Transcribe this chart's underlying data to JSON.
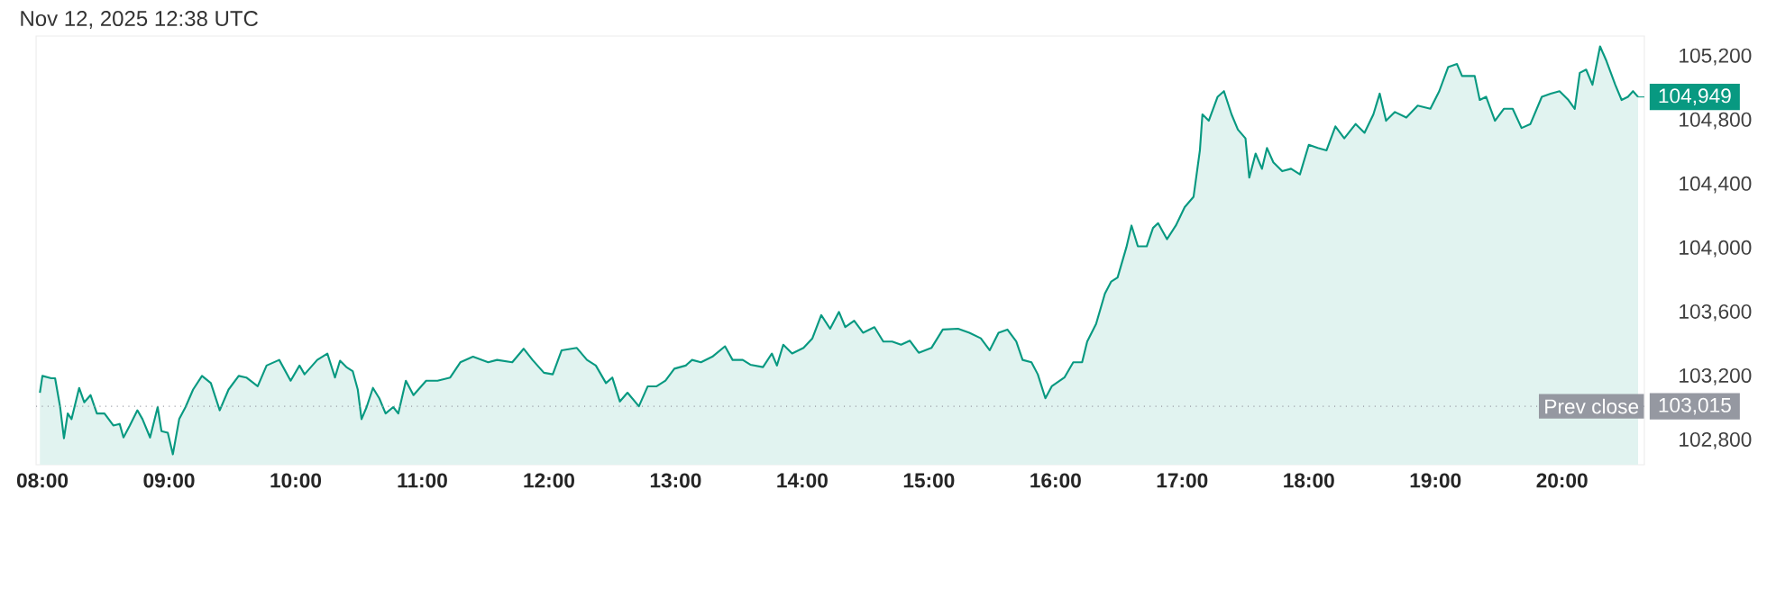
{
  "chart_data": {
    "type": "area",
    "title": "Nov 12, 2025 12:38 UTC",
    "color": "#089981",
    "marker": "none",
    "line_style": "solid",
    "x": [
      7.98,
      8.0,
      8.07,
      8.1,
      8.14,
      8.17,
      8.2,
      8.23,
      8.29,
      8.33,
      8.38,
      8.43,
      8.49,
      8.56,
      8.61,
      8.64,
      8.69,
      8.75,
      8.79,
      8.85,
      8.91,
      8.94,
      8.99,
      9.03,
      9.08,
      9.13,
      9.19,
      9.26,
      9.33,
      9.4,
      9.47,
      9.55,
      9.61,
      9.7,
      9.77,
      9.87,
      9.96,
      10.03,
      10.07,
      10.17,
      10.25,
      10.31,
      10.35,
      10.4,
      10.45,
      10.49,
      10.52,
      10.56,
      10.61,
      10.66,
      10.71,
      10.77,
      10.81,
      10.87,
      10.93,
      11.03,
      11.12,
      11.22,
      11.3,
      11.4,
      11.52,
      11.59,
      11.71,
      11.8,
      11.87,
      11.96,
      12.03,
      12.1,
      12.22,
      12.3,
      12.37,
      12.45,
      12.5,
      12.56,
      12.62,
      12.71,
      12.78,
      12.85,
      12.92,
      12.99,
      13.08,
      13.13,
      13.2,
      13.29,
      13.39,
      13.45,
      13.53,
      13.59,
      13.69,
      13.76,
      13.8,
      13.85,
      13.92,
      14.01,
      14.08,
      14.15,
      14.22,
      14.29,
      14.34,
      14.41,
      14.48,
      14.57,
      14.64,
      14.71,
      14.78,
      14.85,
      14.92,
      15.02,
      15.11,
      15.23,
      15.32,
      15.41,
      15.48,
      15.55,
      15.62,
      15.69,
      15.74,
      15.81,
      15.86,
      15.92,
      15.97,
      16.07,
      16.14,
      16.21,
      16.25,
      16.32,
      16.39,
      16.44,
      16.49,
      16.56,
      16.6,
      16.65,
      16.72,
      16.77,
      16.81,
      16.88,
      16.95,
      17.02,
      17.09,
      17.14,
      17.16,
      17.21,
      17.28,
      17.33,
      17.39,
      17.44,
      17.5,
      17.53,
      17.58,
      17.63,
      17.67,
      17.72,
      17.79,
      17.86,
      17.93,
      18.0,
      18.07,
      18.14,
      18.21,
      18.28,
      18.37,
      18.44,
      18.51,
      18.56,
      18.61,
      18.68,
      18.77,
      18.86,
      18.96,
      19.03,
      19.1,
      19.17,
      19.21,
      19.31,
      19.35,
      19.4,
      19.47,
      19.54,
      19.61,
      19.68,
      19.75,
      19.84,
      19.91,
      19.98,
      20.05,
      20.1,
      20.14,
      20.19,
      20.24,
      20.3,
      20.35,
      20.42,
      20.47,
      20.52,
      20.56,
      20.6
    ],
    "values": [
      103100,
      103205,
      103190,
      103190,
      103010,
      102815,
      102970,
      102935,
      103130,
      103040,
      103085,
      102970,
      102970,
      102895,
      102905,
      102820,
      102895,
      102990,
      102935,
      102820,
      103010,
      102860,
      102850,
      102715,
      102935,
      103010,
      103120,
      103205,
      103160,
      102990,
      103120,
      103205,
      103195,
      103140,
      103270,
      103305,
      103175,
      103270,
      103215,
      103305,
      103345,
      103195,
      103300,
      103260,
      103235,
      103120,
      102935,
      103010,
      103130,
      103065,
      102970,
      103010,
      102970,
      103175,
      103085,
      103175,
      103175,
      103195,
      103290,
      103325,
      103290,
      103305,
      103290,
      103375,
      103305,
      103225,
      103215,
      103365,
      103380,
      103305,
      103270,
      103160,
      103195,
      103045,
      103100,
      103015,
      103140,
      103140,
      103175,
      103250,
      103270,
      103305,
      103290,
      103325,
      103390,
      103305,
      103305,
      103275,
      103260,
      103345,
      103270,
      103400,
      103345,
      103380,
      103440,
      103585,
      103500,
      103605,
      103510,
      103550,
      103475,
      103510,
      103420,
      103420,
      103400,
      103425,
      103350,
      103380,
      103495,
      103500,
      103475,
      103440,
      103365,
      103475,
      103495,
      103420,
      103305,
      103290,
      103215,
      103065,
      103140,
      103195,
      103290,
      103290,
      103420,
      103530,
      103720,
      103795,
      103820,
      104010,
      104145,
      104015,
      104015,
      104130,
      104160,
      104060,
      104145,
      104260,
      104325,
      104615,
      104840,
      104800,
      104950,
      104985,
      104840,
      104745,
      104690,
      104445,
      104595,
      104500,
      104630,
      104540,
      104485,
      104500,
      104465,
      104650,
      104630,
      104615,
      104765,
      104690,
      104780,
      104725,
      104840,
      104970,
      104800,
      104855,
      104820,
      104895,
      104875,
      104985,
      105135,
      105155,
      105080,
      105080,
      104930,
      104950,
      104800,
      104875,
      104875,
      104755,
      104780,
      104950,
      104970,
      104985,
      104930,
      104875,
      105100,
      105120,
      105025,
      105265,
      105175,
      105025,
      104930,
      104950,
      104985,
      104949
    ],
    "xlim": [
      7.95,
      20.65
    ],
    "ylim": [
      102650,
      105330
    ],
    "xticks": [
      {
        "value": 8,
        "label": "08:00"
      },
      {
        "value": 9,
        "label": "09:00"
      },
      {
        "value": 10,
        "label": "10:00"
      },
      {
        "value": 11,
        "label": "11:00"
      },
      {
        "value": 12,
        "label": "12:00"
      },
      {
        "value": 13,
        "label": "13:00"
      },
      {
        "value": 14,
        "label": "14:00"
      },
      {
        "value": 15,
        "label": "15:00"
      },
      {
        "value": 16,
        "label": "16:00"
      },
      {
        "value": 17,
        "label": "17:00"
      },
      {
        "value": 18,
        "label": "18:00"
      },
      {
        "value": 19,
        "label": "19:00"
      },
      {
        "value": 20,
        "label": "20:00"
      }
    ],
    "yticks": [
      {
        "value": 102800,
        "label": "102,800"
      },
      {
        "value": 103200,
        "label": "103,200"
      },
      {
        "value": 103600,
        "label": "103,600"
      },
      {
        "value": 104000,
        "label": "104,000"
      },
      {
        "value": 104400,
        "label": "104,400"
      },
      {
        "value": 104800,
        "label": "104,800"
      },
      {
        "value": 105200,
        "label": "105,200"
      }
    ],
    "ref_lines": [
      {
        "axis": "y",
        "value": 103015,
        "label": "Prev close",
        "color": "#9598a1",
        "line_style": "dotted"
      }
    ],
    "annotations": [
      {
        "text": "104,949",
        "x": 20.6,
        "y": 104949
      },
      {
        "text": "103,015",
        "x": 20.6,
        "y": 103015
      }
    ]
  }
}
